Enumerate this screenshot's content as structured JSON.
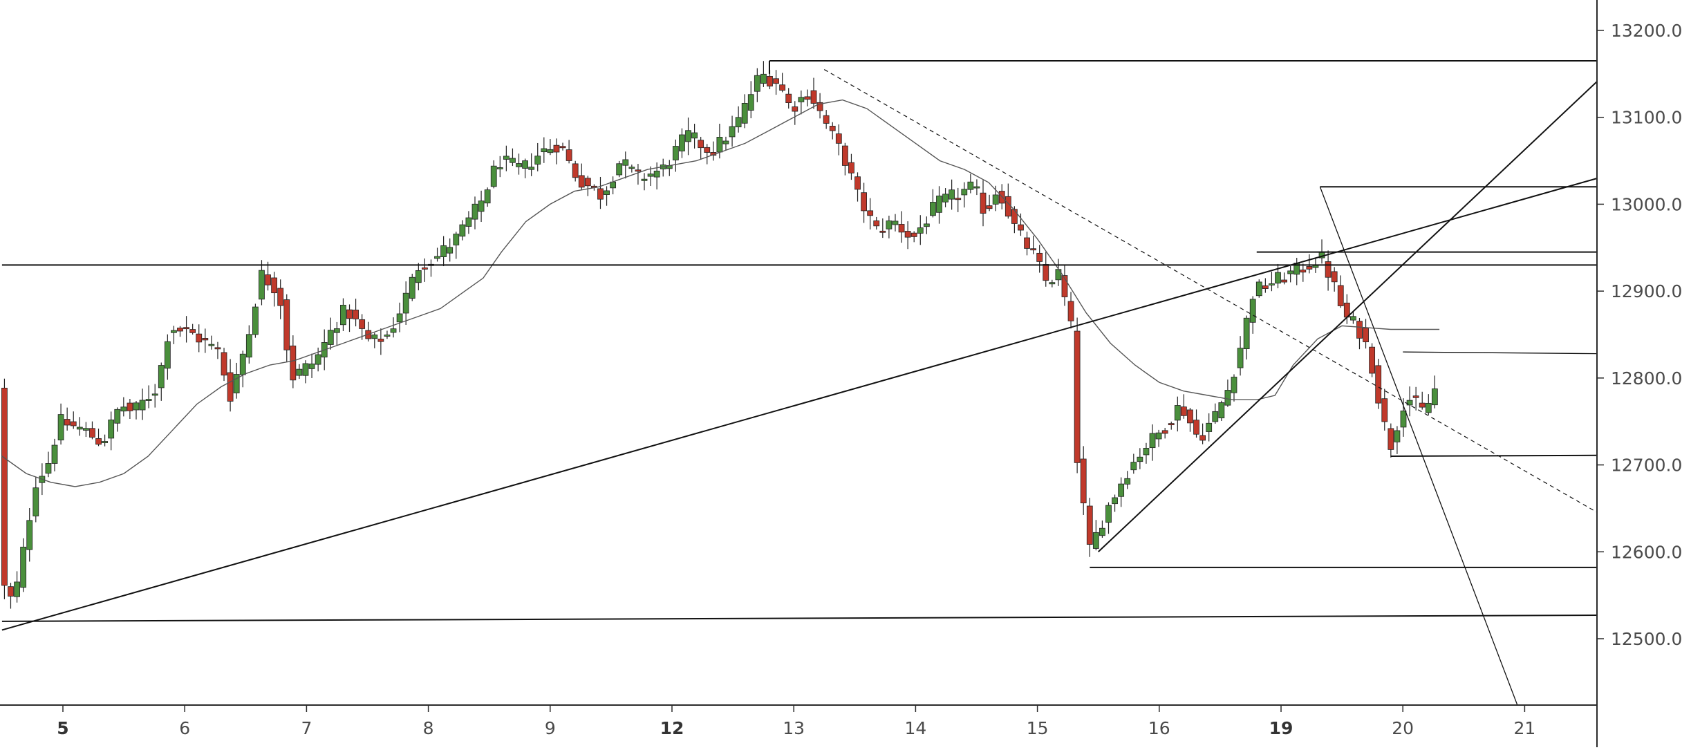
{
  "chart_data": {
    "type": "candlestick",
    "title": "",
    "xlabel": "",
    "ylabel": "",
    "ylim": [
      12420,
      13240
    ],
    "xlim": [
      4.5,
      21.6
    ],
    "grid": false,
    "legend": "none",
    "y_ticks": [
      {
        "value": 12500,
        "label": "12500.0"
      },
      {
        "value": 12600,
        "label": "12600.0"
      },
      {
        "value": 12700,
        "label": "12700.0"
      },
      {
        "value": 12800,
        "label": "12800.0"
      },
      {
        "value": 12900,
        "label": "12900.0"
      },
      {
        "value": 13000,
        "label": "13000.0"
      },
      {
        "value": 13100,
        "label": "13100.0"
      },
      {
        "value": 13200,
        "label": "13200.0"
      }
    ],
    "x_ticks": [
      {
        "x": 5,
        "label": "5",
        "bold": true
      },
      {
        "x": 6,
        "label": "6",
        "bold": false
      },
      {
        "x": 7,
        "label": "7",
        "bold": false
      },
      {
        "x": 8,
        "label": "8",
        "bold": false
      },
      {
        "x": 9,
        "label": "9",
        "bold": false
      },
      {
        "x": 10,
        "label": "12",
        "bold": true
      },
      {
        "x": 11,
        "label": "13",
        "bold": false
      },
      {
        "x": 12,
        "label": "14",
        "bold": false
      },
      {
        "x": 13,
        "label": "15",
        "bold": false
      },
      {
        "x": 14,
        "label": "16",
        "bold": false
      },
      {
        "x": 15,
        "label": "19",
        "bold": true
      },
      {
        "x": 16,
        "label": "20",
        "bold": false
      },
      {
        "x": 17,
        "label": "21",
        "bold": false
      }
    ],
    "price_path": [
      [
        4.5,
        12570
      ],
      [
        4.62,
        12540
      ],
      [
        4.7,
        12600
      ],
      [
        4.8,
        12680
      ],
      [
        4.9,
        12700
      ],
      [
        5.0,
        12750
      ],
      [
        5.2,
        12740
      ],
      [
        5.35,
        12725
      ],
      [
        5.5,
        12770
      ],
      [
        5.6,
        12760
      ],
      [
        5.8,
        12790
      ],
      [
        5.9,
        12860
      ],
      [
        6.1,
        12850
      ],
      [
        6.3,
        12830
      ],
      [
        6.4,
        12780
      ],
      [
        6.55,
        12850
      ],
      [
        6.65,
        12920
      ],
      [
        6.8,
        12900
      ],
      [
        6.9,
        12800
      ],
      [
        7.1,
        12820
      ],
      [
        7.25,
        12860
      ],
      [
        7.35,
        12880
      ],
      [
        7.55,
        12840
      ],
      [
        7.7,
        12850
      ],
      [
        7.8,
        12880
      ],
      [
        7.95,
        12930
      ],
      [
        8.1,
        12940
      ],
      [
        8.25,
        12960
      ],
      [
        8.45,
        13000
      ],
      [
        8.6,
        13050
      ],
      [
        8.8,
        13040
      ],
      [
        8.95,
        13060
      ],
      [
        9.1,
        13070
      ],
      [
        9.25,
        13030
      ],
      [
        9.45,
        13010
      ],
      [
        9.6,
        13050
      ],
      [
        9.75,
        13030
      ],
      [
        9.95,
        13040
      ],
      [
        10.15,
        13080
      ],
      [
        10.35,
        13060
      ],
      [
        10.55,
        13090
      ],
      [
        10.75,
        13150
      ],
      [
        10.9,
        13140
      ],
      [
        11.0,
        13110
      ],
      [
        11.15,
        13130
      ],
      [
        11.3,
        13090
      ],
      [
        11.45,
        13050
      ],
      [
        11.55,
        13010
      ],
      [
        11.7,
        12970
      ],
      [
        11.85,
        12980
      ],
      [
        12.0,
        12960
      ],
      [
        12.2,
        13000
      ],
      [
        12.35,
        13010
      ],
      [
        12.5,
        13020
      ],
      [
        12.6,
        12990
      ],
      [
        12.7,
        13020
      ],
      [
        12.85,
        12970
      ],
      [
        13.0,
        12940
      ],
      [
        13.1,
        12910
      ],
      [
        13.2,
        12920
      ],
      [
        13.3,
        12860
      ],
      [
        13.35,
        12710
      ],
      [
        13.45,
        12600
      ],
      [
        13.6,
        12650
      ],
      [
        13.75,
        12690
      ],
      [
        13.9,
        12720
      ],
      [
        14.05,
        12740
      ],
      [
        14.2,
        12770
      ],
      [
        14.35,
        12730
      ],
      [
        14.5,
        12760
      ],
      [
        14.6,
        12790
      ],
      [
        14.7,
        12840
      ],
      [
        14.8,
        12900
      ],
      [
        14.95,
        12910
      ],
      [
        15.1,
        12920
      ],
      [
        15.25,
        12930
      ],
      [
        15.35,
        12940
      ],
      [
        15.45,
        12910
      ],
      [
        15.55,
        12870
      ],
      [
        15.65,
        12860
      ],
      [
        15.75,
        12830
      ],
      [
        15.85,
        12760
      ],
      [
        15.92,
        12720
      ],
      [
        16.05,
        12780
      ],
      [
        16.2,
        12760
      ],
      [
        16.3,
        12790
      ]
    ],
    "moving_average": [
      [
        4.5,
        12710
      ],
      [
        4.7,
        12690
      ],
      [
        4.9,
        12680
      ],
      [
        5.1,
        12675
      ],
      [
        5.3,
        12680
      ],
      [
        5.5,
        12690
      ],
      [
        5.7,
        12710
      ],
      [
        5.9,
        12740
      ],
      [
        6.1,
        12770
      ],
      [
        6.3,
        12790
      ],
      [
        6.5,
        12805
      ],
      [
        6.7,
        12815
      ],
      [
        6.9,
        12820
      ],
      [
        7.1,
        12830
      ],
      [
        7.3,
        12840
      ],
      [
        7.5,
        12850
      ],
      [
        7.7,
        12860
      ],
      [
        7.9,
        12870
      ],
      [
        8.1,
        12880
      ],
      [
        8.3,
        12900
      ],
      [
        8.45,
        12915
      ],
      [
        8.6,
        12945
      ],
      [
        8.8,
        12980
      ],
      [
        9.0,
        13000
      ],
      [
        9.2,
        13015
      ],
      [
        9.4,
        13020
      ],
      [
        9.6,
        13030
      ],
      [
        9.8,
        13040
      ],
      [
        10.0,
        13045
      ],
      [
        10.2,
        13050
      ],
      [
        10.4,
        13060
      ],
      [
        10.6,
        13070
      ],
      [
        10.8,
        13085
      ],
      [
        11.0,
        13100
      ],
      [
        11.2,
        13115
      ],
      [
        11.4,
        13120
      ],
      [
        11.6,
        13110
      ],
      [
        11.8,
        13090
      ],
      [
        12.0,
        13070
      ],
      [
        12.2,
        13050
      ],
      [
        12.4,
        13040
      ],
      [
        12.6,
        13025
      ],
      [
        12.8,
        12995
      ],
      [
        13.0,
        12960
      ],
      [
        13.2,
        12920
      ],
      [
        13.4,
        12875
      ],
      [
        13.6,
        12840
      ],
      [
        13.8,
        12815
      ],
      [
        14.0,
        12795
      ],
      [
        14.2,
        12785
      ],
      [
        14.4,
        12780
      ],
      [
        14.6,
        12775
      ],
      [
        14.8,
        12775
      ],
      [
        14.95,
        12780
      ],
      [
        15.1,
        12815
      ],
      [
        15.3,
        12845
      ],
      [
        15.5,
        12860
      ],
      [
        15.7,
        12858
      ],
      [
        15.9,
        12856
      ],
      [
        16.1,
        12856
      ],
      [
        16.3,
        12856
      ]
    ],
    "drawings": [
      {
        "kind": "hline",
        "y": 12930,
        "x1": 4.5,
        "x2": 17.6,
        "style": "solid"
      },
      {
        "kind": "segment",
        "x1": 10.8,
        "y1": 13165,
        "x2": 17.6,
        "y2": 13165,
        "style": "solid"
      },
      {
        "kind": "segment",
        "x1": 10.8,
        "y1": 13165,
        "x2": 10.8,
        "y2": 13150,
        "style": "solid"
      },
      {
        "kind": "segment",
        "x1": 4.5,
        "y1": 12520,
        "x2": 17.6,
        "y2": 12527,
        "style": "solid"
      },
      {
        "kind": "segment",
        "x1": 4.5,
        "y1": 12510,
        "x2": 17.6,
        "y2": 13030,
        "style": "solid"
      },
      {
        "kind": "segment",
        "x1": 13.5,
        "y1": 12600,
        "x2": 17.6,
        "y2": 13142,
        "style": "solid"
      },
      {
        "kind": "segment",
        "x1": 11.25,
        "y1": 13155,
        "x2": 17.6,
        "y2": 12645,
        "style": "dashed"
      },
      {
        "kind": "segment",
        "x1": 15.32,
        "y1": 13020,
        "x2": 16.95,
        "y2": 12420,
        "style": "thin"
      },
      {
        "kind": "segment",
        "x1": 15.32,
        "y1": 13020,
        "x2": 17.6,
        "y2": 13020,
        "style": "solid"
      },
      {
        "kind": "segment",
        "x1": 14.8,
        "y1": 12945,
        "x2": 17.6,
        "y2": 12945,
        "style": "solid"
      },
      {
        "kind": "segment",
        "x1": 13.43,
        "y1": 12582,
        "x2": 17.6,
        "y2": 12582,
        "style": "solid"
      },
      {
        "kind": "segment",
        "x1": 15.9,
        "y1": 12710,
        "x2": 17.6,
        "y2": 12711,
        "style": "solid"
      },
      {
        "kind": "segment",
        "x1": 16.0,
        "y1": 12830,
        "x2": 17.6,
        "y2": 12828,
        "style": "thin"
      }
    ],
    "colors": {
      "bull": "#4a8f3c",
      "bear": "#c0392b",
      "wick": "#222222",
      "ma": "#555555",
      "drawing": "#111111",
      "axis_text": "#4a4a4a",
      "background": "#ffffff"
    }
  }
}
